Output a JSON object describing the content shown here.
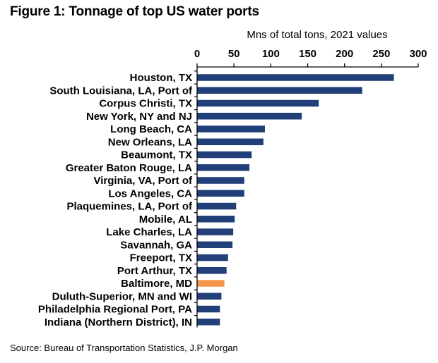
{
  "title": "Figure 1: Tonnage of top US water ports",
  "source": "Source: Bureau of Transportation Statistics, J.P. Morgan",
  "colors": {
    "bar": "#213f79",
    "highlight": "#f7964a",
    "axis": "#000000"
  },
  "chart_data": {
    "type": "bar",
    "orientation": "horizontal",
    "title": "Figure 1: Tonnage of top US water ports",
    "xlabel": "Mns of total tons, 2021 values",
    "ylabel": "",
    "xlim": [
      0,
      300
    ],
    "xticks": [
      0,
      50,
      100,
      150,
      200,
      250,
      300
    ],
    "axis_position": "top",
    "grid": false,
    "categories": [
      "Houston, TX",
      "South Louisiana, LA, Port of",
      "Corpus Christi, TX",
      "New York, NY and NJ",
      "Long Beach, CA",
      "New Orleans, LA",
      "Beaumont, TX",
      "Greater Baton Rouge, LA",
      "Virginia, VA, Port of",
      "Los Angeles, CA",
      "Plaquemines, LA, Port of",
      "Mobile, AL",
      "Lake Charles, LA",
      "Savannah, GA",
      "Freeport, TX",
      "Port Arthur, TX",
      "Baltimore, MD",
      "Duluth-Superior, MN and WI",
      "Philadelphia Regional Port, PA",
      "Indiana (Northern District), IN"
    ],
    "values": [
      267,
      224,
      165,
      142,
      92,
      90,
      74,
      71,
      64,
      64,
      53,
      51,
      49,
      48,
      42,
      40,
      37,
      33,
      31,
      31
    ],
    "highlight": "Baltimore, MD"
  }
}
